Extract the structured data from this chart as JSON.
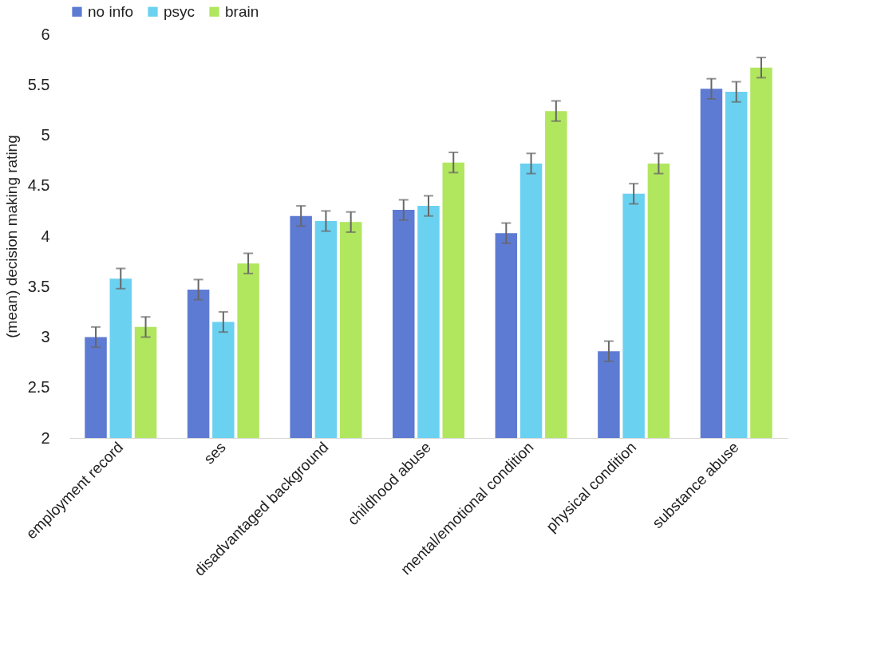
{
  "chart_data": {
    "type": "bar",
    "ylabel": "(mean) decision making rating",
    "categories": [
      "employment record",
      "ses",
      "disadvantaged background",
      "childhood abuse",
      "mental/emotional condition",
      "physical condition",
      "substance abuse"
    ],
    "series": [
      {
        "name": "no info",
        "color": "#5e7bd3",
        "values": [
          3.0,
          3.47,
          4.2,
          4.26,
          4.03,
          2.86,
          5.46
        ],
        "errors": [
          0.1,
          0.1,
          0.1,
          0.1,
          0.1,
          0.1,
          0.1
        ]
      },
      {
        "name": "psyc",
        "color": "#6bd1f0",
        "values": [
          3.58,
          3.15,
          4.15,
          4.3,
          4.72,
          4.42,
          5.43
        ],
        "errors": [
          0.1,
          0.1,
          0.1,
          0.1,
          0.1,
          0.1,
          0.1
        ]
      },
      {
        "name": "brain",
        "color": "#b1e65f",
        "values": [
          3.1,
          3.73,
          4.14,
          4.73,
          5.24,
          4.72,
          5.67
        ],
        "errors": [
          0.1,
          0.1,
          0.1,
          0.1,
          0.1,
          0.1,
          0.1
        ]
      }
    ],
    "ylim": [
      2,
      6
    ],
    "yticks": [
      2,
      2.5,
      3,
      3.5,
      4,
      4.5,
      5,
      5.5,
      6
    ],
    "grid": false,
    "legend": "top"
  }
}
